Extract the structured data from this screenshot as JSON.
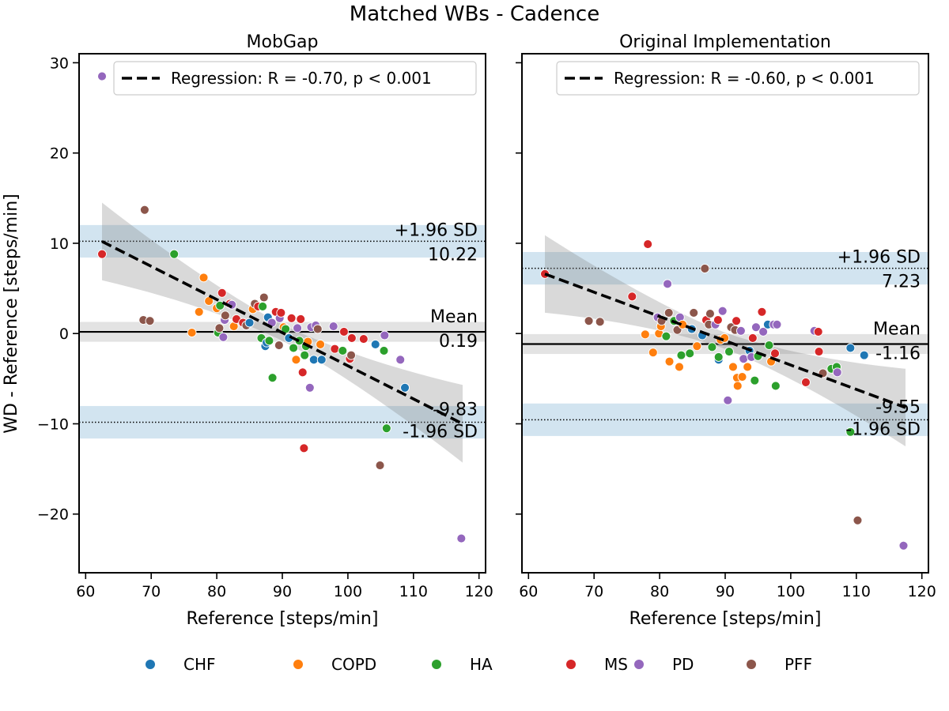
{
  "figure": {
    "title": "Matched WBs - Cadence",
    "ylabel": "WD - Reference [steps/min]",
    "legend_groups": [
      {
        "name": "CHF",
        "color": "#1f77b4"
      },
      {
        "name": "COPD",
        "color": "#ff7f0e"
      },
      {
        "name": "HA",
        "color": "#2ca02c"
      },
      {
        "name": "MS",
        "color": "#d62728"
      },
      {
        "name": "PD",
        "color": "#9467bd"
      },
      {
        "name": "PFF",
        "color": "#8c564b"
      }
    ]
  },
  "chart_data": [
    {
      "type": "scatter",
      "title": "MobGap",
      "xlabel": "Reference [steps/min]",
      "ylabel": "WD - Reference [steps/min]",
      "xlim": [
        59,
        121
      ],
      "ylim": [
        -26.5,
        31
      ],
      "xticks": [
        60,
        70,
        80,
        90,
        100,
        110,
        120
      ],
      "yticks": [
        -20,
        -10,
        0,
        10,
        20,
        30
      ],
      "ytick_labels": [
        "−20",
        "−10",
        "0",
        "10",
        "20",
        "30"
      ],
      "mean": 0.19,
      "upper_loa": 10.22,
      "lower_loa": -9.83,
      "mean_label": "Mean",
      "mean_value_label": "0.19",
      "upper_label": "+1.96 SD",
      "upper_value_label": "10.22",
      "lower_label": "-1.96 SD",
      "lower_value_label": "-9.83",
      "regression": {
        "label": "Regression: R = -0.70, p < 0.001",
        "x0": 62.5,
        "y0": 10.2,
        "x1": 117.5,
        "y1": -10.0
      },
      "legend_position": "top-right",
      "points": [
        {
          "group": "PD",
          "x": 62.5,
          "y": 28.5
        },
        {
          "group": "MS",
          "x": 62.5,
          "y": 8.8
        },
        {
          "group": "PFF",
          "x": 69,
          "y": 13.7
        },
        {
          "group": "PFF",
          "x": 68.8,
          "y": 1.5
        },
        {
          "group": "PFF",
          "x": 69.8,
          "y": 1.4
        },
        {
          "group": "HA",
          "x": 73.5,
          "y": 8.8
        },
        {
          "group": "COPD",
          "x": 76.2,
          "y": 0.1
        },
        {
          "group": "COPD",
          "x": 77.3,
          "y": 2.4
        },
        {
          "group": "COPD",
          "x": 78,
          "y": 6.2
        },
        {
          "group": "COPD",
          "x": 78.8,
          "y": 3.6
        },
        {
          "group": "COPD",
          "x": 80,
          "y": 2.8
        },
        {
          "group": "HA",
          "x": 80.2,
          "y": 0.1
        },
        {
          "group": "HA",
          "x": 80.5,
          "y": 3.1
        },
        {
          "group": "PFF",
          "x": 80.4,
          "y": 0.6
        },
        {
          "group": "MS",
          "x": 80.8,
          "y": 4.5
        },
        {
          "group": "PD",
          "x": 81,
          "y": -0.4
        },
        {
          "group": "PD",
          "x": 81.2,
          "y": 1.5
        },
        {
          "group": "PFF",
          "x": 81.3,
          "y": 2.0
        },
        {
          "group": "MS",
          "x": 82,
          "y": 3.3
        },
        {
          "group": "PD",
          "x": 82.3,
          "y": 3.2
        },
        {
          "group": "COPD",
          "x": 82.6,
          "y": 0.8
        },
        {
          "group": "MS",
          "x": 83,
          "y": 1.6
        },
        {
          "group": "MS",
          "x": 84,
          "y": 1.2
        },
        {
          "group": "PFF",
          "x": 84.5,
          "y": 0.9
        },
        {
          "group": "CHF",
          "x": 85,
          "y": 1.2
        },
        {
          "group": "COPD",
          "x": 85.5,
          "y": 2.7
        },
        {
          "group": "PFF",
          "x": 85.8,
          "y": 3.3
        },
        {
          "group": "MS",
          "x": 86.3,
          "y": 3.0
        },
        {
          "group": "HA",
          "x": 86.8,
          "y": -0.5
        },
        {
          "group": "HA",
          "x": 87,
          "y": 3.0
        },
        {
          "group": "PFF",
          "x": 87.2,
          "y": 4.0
        },
        {
          "group": "CHF",
          "x": 87.4,
          "y": -1.4
        },
        {
          "group": "CHF",
          "x": 87.6,
          "y": -1.0
        },
        {
          "group": "CHF",
          "x": 87.8,
          "y": 1.8
        },
        {
          "group": "HA",
          "x": 88,
          "y": -0.8
        },
        {
          "group": "HA",
          "x": 88.5,
          "y": -4.9
        },
        {
          "group": "PD",
          "x": 88.4,
          "y": 1.2
        },
        {
          "group": "MS",
          "x": 89,
          "y": 2.4
        },
        {
          "group": "PFF",
          "x": 89.5,
          "y": -1.3
        },
        {
          "group": "PD",
          "x": 89.6,
          "y": 1.7
        },
        {
          "group": "MS",
          "x": 89.8,
          "y": 2.3
        },
        {
          "group": "COPD",
          "x": 90.2,
          "y": 0.7
        },
        {
          "group": "HA",
          "x": 90.5,
          "y": 0.5
        },
        {
          "group": "CHF",
          "x": 91,
          "y": -0.5
        },
        {
          "group": "MS",
          "x": 91.4,
          "y": 1.7
        },
        {
          "group": "HA",
          "x": 91.7,
          "y": -1.6
        },
        {
          "group": "COPD",
          "x": 92.1,
          "y": -2.9
        },
        {
          "group": "PD",
          "x": 92.3,
          "y": 0.6
        },
        {
          "group": "HA",
          "x": 92.6,
          "y": -0.8
        },
        {
          "group": "MS",
          "x": 92.8,
          "y": 1.6
        },
        {
          "group": "MS",
          "x": 93.1,
          "y": -4.3
        },
        {
          "group": "MS",
          "x": 93.3,
          "y": -12.7
        },
        {
          "group": "HA",
          "x": 93.4,
          "y": -2.4
        },
        {
          "group": "HA",
          "x": 93.6,
          "y": -1.4
        },
        {
          "group": "COPD",
          "x": 93.9,
          "y": -0.9
        },
        {
          "group": "PD",
          "x": 94.2,
          "y": -6.0
        },
        {
          "group": "PD",
          "x": 94.4,
          "y": 0.7
        },
        {
          "group": "CHF",
          "x": 94.8,
          "y": -2.9
        },
        {
          "group": "PD",
          "x": 95.1,
          "y": 0.9
        },
        {
          "group": "PFF",
          "x": 95.4,
          "y": 0.5
        },
        {
          "group": "COPD",
          "x": 95.8,
          "y": -1.2
        },
        {
          "group": "CHF",
          "x": 96,
          "y": -2.9
        },
        {
          "group": "PD",
          "x": 97.8,
          "y": 0.8
        },
        {
          "group": "MS",
          "x": 98,
          "y": -1.7
        },
        {
          "group": "HA",
          "x": 99.2,
          "y": -1.9
        },
        {
          "group": "MS",
          "x": 99.4,
          "y": 0.2
        },
        {
          "group": "MS",
          "x": 100.3,
          "y": -2.8
        },
        {
          "group": "PFF",
          "x": 100.5,
          "y": -2.4
        },
        {
          "group": "MS",
          "x": 100.6,
          "y": -0.5
        },
        {
          "group": "MS",
          "x": 102.4,
          "y": -0.6
        },
        {
          "group": "CHF",
          "x": 104.2,
          "y": -1.2
        },
        {
          "group": "PFF",
          "x": 104.9,
          "y": -14.6
        },
        {
          "group": "HA",
          "x": 105.5,
          "y": -1.9
        },
        {
          "group": "PD",
          "x": 105.6,
          "y": -0.2
        },
        {
          "group": "HA",
          "x": 105.9,
          "y": -10.5
        },
        {
          "group": "PD",
          "x": 108,
          "y": -2.9
        },
        {
          "group": "CHF",
          "x": 108.7,
          "y": -6.0
        },
        {
          "group": "PD",
          "x": 117.3,
          "y": -22.7
        }
      ]
    },
    {
      "type": "scatter",
      "title": "Original Implementation",
      "xlabel": "Reference [steps/min]",
      "ylabel": "",
      "xlim": [
        59,
        121
      ],
      "ylim": [
        -26.5,
        31
      ],
      "xticks": [
        60,
        70,
        80,
        90,
        100,
        110,
        120
      ],
      "yticks": [
        -20,
        -10,
        0,
        10,
        20,
        30
      ],
      "mean": -1.16,
      "upper_loa": 7.23,
      "lower_loa": -9.55,
      "mean_label": "Mean",
      "mean_value_label": "-1.16",
      "upper_label": "+1.96 SD",
      "upper_value_label": "7.23",
      "lower_label": "-1.96 SD",
      "lower_value_label": "-9.55",
      "regression": {
        "label": "Regression: R = -0.60, p < 0.001",
        "x0": 62.5,
        "y0": 6.6,
        "x1": 117.5,
        "y1": -8.2
      },
      "legend_position": "top-right",
      "points": [
        {
          "group": "MS",
          "x": 62.5,
          "y": 6.6
        },
        {
          "group": "PFF",
          "x": 69.2,
          "y": 1.4
        },
        {
          "group": "PFF",
          "x": 70.9,
          "y": 1.3
        },
        {
          "group": "MS",
          "x": 75.8,
          "y": 4.1
        },
        {
          "group": "COPD",
          "x": 77.8,
          "y": -0.1
        },
        {
          "group": "MS",
          "x": 78.2,
          "y": 9.9
        },
        {
          "group": "COPD",
          "x": 79,
          "y": -2.1
        },
        {
          "group": "PD",
          "x": 79.7,
          "y": 1.8
        },
        {
          "group": "COPD",
          "x": 79.9,
          "y": 0.0
        },
        {
          "group": "COPD",
          "x": 80.2,
          "y": 0.8
        },
        {
          "group": "PFF",
          "x": 80.3,
          "y": 1.4
        },
        {
          "group": "HA",
          "x": 81,
          "y": -0.3
        },
        {
          "group": "PD",
          "x": 81.2,
          "y": 5.5
        },
        {
          "group": "PFF",
          "x": 81.4,
          "y": 2.3
        },
        {
          "group": "COPD",
          "x": 81.5,
          "y": -3.1
        },
        {
          "group": "HA",
          "x": 82.2,
          "y": 1.4
        },
        {
          "group": "PFF",
          "x": 82.7,
          "y": 0.4
        },
        {
          "group": "COPD",
          "x": 83,
          "y": -3.7
        },
        {
          "group": "PD",
          "x": 83.1,
          "y": 1.8
        },
        {
          "group": "HA",
          "x": 83.3,
          "y": -2.4
        },
        {
          "group": "COPD",
          "x": 83.5,
          "y": 1.0
        },
        {
          "group": "HA",
          "x": 84.6,
          "y": -2.2
        },
        {
          "group": "CHF",
          "x": 84.9,
          "y": 0.5
        },
        {
          "group": "PFF",
          "x": 85.2,
          "y": 2.3
        },
        {
          "group": "COPD",
          "x": 85.7,
          "y": -1.4
        },
        {
          "group": "CHF",
          "x": 86.5,
          "y": -0.2
        },
        {
          "group": "PFF",
          "x": 86.9,
          "y": 7.2
        },
        {
          "group": "MS",
          "x": 87.1,
          "y": 1.5
        },
        {
          "group": "PFF",
          "x": 87.5,
          "y": 1.0
        },
        {
          "group": "PFF",
          "x": 87.7,
          "y": 2.2
        },
        {
          "group": "HA",
          "x": 88,
          "y": -1.5
        },
        {
          "group": "PD",
          "x": 88.5,
          "y": 1.0
        },
        {
          "group": "MS",
          "x": 88.9,
          "y": 1.5
        },
        {
          "group": "CHF",
          "x": 89,
          "y": -2.9
        },
        {
          "group": "HA",
          "x": 89,
          "y": -2.6
        },
        {
          "group": "COPD",
          "x": 89.3,
          "y": -0.7
        },
        {
          "group": "PD",
          "x": 89.6,
          "y": 2.5
        },
        {
          "group": "COPD",
          "x": 89.9,
          "y": -0.5
        },
        {
          "group": "PD",
          "x": 90.4,
          "y": -7.4
        },
        {
          "group": "HA",
          "x": 90.6,
          "y": -2.0
        },
        {
          "group": "PFF",
          "x": 90.9,
          "y": 0.7
        },
        {
          "group": "COPD",
          "x": 91.2,
          "y": -3.7
        },
        {
          "group": "PFF",
          "x": 91.5,
          "y": 0.4
        },
        {
          "group": "MS",
          "x": 91.7,
          "y": 1.4
        },
        {
          "group": "COPD",
          "x": 91.8,
          "y": -4.9
        },
        {
          "group": "COPD",
          "x": 91.9,
          "y": -5.8
        },
        {
          "group": "PD",
          "x": 92.4,
          "y": 0.3
        },
        {
          "group": "COPD",
          "x": 92.6,
          "y": -4.8
        },
        {
          "group": "PD",
          "x": 92.8,
          "y": -2.8
        },
        {
          "group": "COPD",
          "x": 93.4,
          "y": -3.7
        },
        {
          "group": "CHF",
          "x": 93.7,
          "y": -1.9
        },
        {
          "group": "PD",
          "x": 94,
          "y": -2.6
        },
        {
          "group": "MS",
          "x": 94.2,
          "y": -0.5
        },
        {
          "group": "HA",
          "x": 94.5,
          "y": -5.2
        },
        {
          "group": "PD",
          "x": 94.7,
          "y": 0.7
        },
        {
          "group": "HA",
          "x": 95,
          "y": -2.5
        },
        {
          "group": "MS",
          "x": 95.6,
          "y": 2.4
        },
        {
          "group": "PD",
          "x": 95.8,
          "y": 0.2
        },
        {
          "group": "CHF",
          "x": 96.5,
          "y": 1.0
        },
        {
          "group": "HA",
          "x": 96.7,
          "y": -1.3
        },
        {
          "group": "COPD",
          "x": 97,
          "y": -3.1
        },
        {
          "group": "PD",
          "x": 97.4,
          "y": 1.0
        },
        {
          "group": "MS",
          "x": 97.6,
          "y": -2.2
        },
        {
          "group": "PD",
          "x": 97.9,
          "y": 1.0
        },
        {
          "group": "HA",
          "x": 97.7,
          "y": -5.8
        },
        {
          "group": "MS",
          "x": 102.3,
          "y": -5.4
        },
        {
          "group": "PD",
          "x": 103.6,
          "y": 0.3
        },
        {
          "group": "MS",
          "x": 104.2,
          "y": 0.2
        },
        {
          "group": "MS",
          "x": 104.3,
          "y": -2.0
        },
        {
          "group": "PFF",
          "x": 104.9,
          "y": -4.4
        },
        {
          "group": "HA",
          "x": 106.2,
          "y": -3.9
        },
        {
          "group": "HA",
          "x": 107,
          "y": -3.7
        },
        {
          "group": "PD",
          "x": 107.1,
          "y": -4.3
        },
        {
          "group": "CHF",
          "x": 109.1,
          "y": -1.6
        },
        {
          "group": "HA",
          "x": 109.1,
          "y": -10.9
        },
        {
          "group": "PFF",
          "x": 110.2,
          "y": -20.7
        },
        {
          "group": "CHF",
          "x": 111.2,
          "y": -2.4
        },
        {
          "group": "PD",
          "x": 117.2,
          "y": -23.5
        }
      ]
    }
  ]
}
